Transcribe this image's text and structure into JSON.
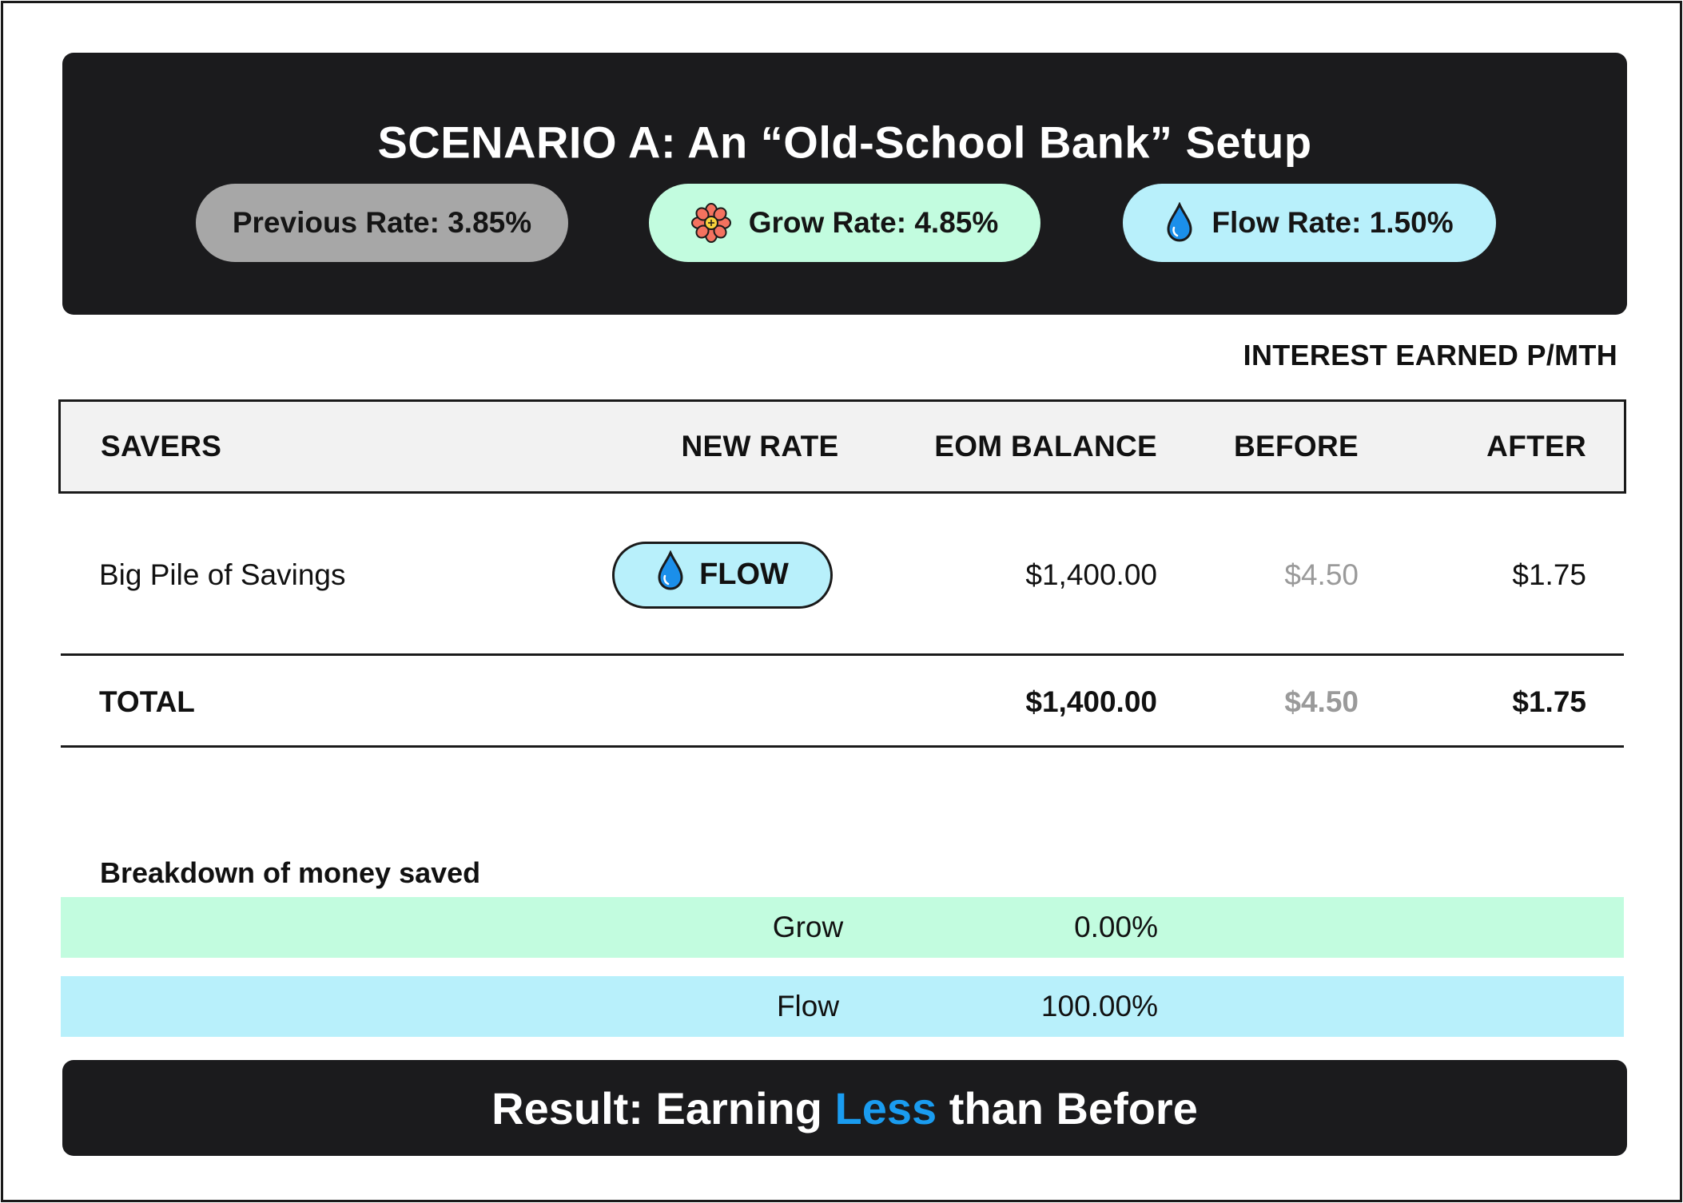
{
  "header": {
    "title": "SCENARIO A: An “Old-School Bank” Setup",
    "pills": {
      "previous": {
        "label": "Previous Rate: 3.85%"
      },
      "grow": {
        "label": "Grow Rate: 4.85%",
        "icon": "flower-icon"
      },
      "flow": {
        "label": "Flow Rate: 1.50%",
        "icon": "water-drop-icon"
      }
    }
  },
  "interest_heading": "INTEREST EARNED P/MTH",
  "table": {
    "columns": {
      "savers": "SAVERS",
      "new_rate": "NEW RATE",
      "eom_balance": "EOM BALANCE",
      "before": "BEFORE",
      "after": "AFTER"
    },
    "rows": [
      {
        "saver": "Big Pile of Savings",
        "rate_badge": "FLOW",
        "rate_icon": "water-drop-icon",
        "eom_balance": "$1,400.00",
        "before": "$4.50",
        "after": "$1.75"
      }
    ],
    "total": {
      "label": "TOTAL",
      "eom_balance": "$1,400.00",
      "before": "$4.50",
      "after": "$1.75"
    }
  },
  "breakdown": {
    "title": "Breakdown of money saved",
    "items": [
      {
        "label": "Grow",
        "value": "0.00%"
      },
      {
        "label": "Flow",
        "value": "100.00%"
      }
    ]
  },
  "result": {
    "prefix": "Result: Earning ",
    "accent": "Less",
    "suffix": " than Before"
  },
  "colors": {
    "dark": "#1b1b1d",
    "grow": "#c2fcdf",
    "flow": "#b8f0fb",
    "previous": "#a7a7a7",
    "accent_blue": "#1a9cf0",
    "muted": "#9a9a9a"
  }
}
